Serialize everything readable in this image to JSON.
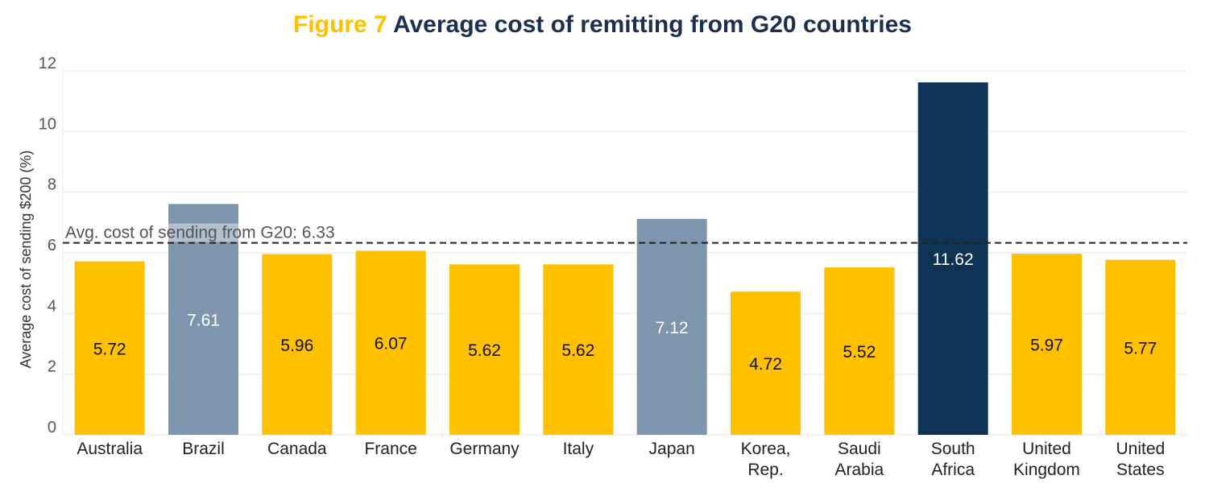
{
  "title": {
    "figure_label": "Figure 7",
    "text": "Average cost of remitting from G20 countries"
  },
  "chart_data": {
    "type": "bar",
    "title": "Figure 7 Average cost of remitting from G20 countries",
    "xlabel": "",
    "ylabel": "Average cost of sending $200 (%)",
    "ylim": [
      0,
      12
    ],
    "yticks": [
      0,
      2,
      4,
      6,
      8,
      10,
      12
    ],
    "grid": true,
    "categories": [
      [
        "Australia"
      ],
      [
        "Brazil"
      ],
      [
        "Canada"
      ],
      [
        "France"
      ],
      [
        "Germany"
      ],
      [
        "Italy"
      ],
      [
        "Japan"
      ],
      [
        "Korea,",
        "Rep."
      ],
      [
        "Saudi",
        "Arabia"
      ],
      [
        "South",
        "Africa"
      ],
      [
        "United",
        "Kingdom"
      ],
      [
        "United",
        "States"
      ]
    ],
    "values": [
      5.72,
      7.61,
      5.96,
      6.07,
      5.62,
      5.62,
      7.12,
      4.72,
      5.52,
      11.62,
      5.97,
      5.77
    ],
    "data_labels": [
      "5.72",
      "7.61",
      "5.96",
      "6.07",
      "5.62",
      "5.62",
      "7.12",
      "4.72",
      "5.52",
      "11.62",
      "5.97",
      "5.77"
    ],
    "bar_colors": [
      "#ffc000",
      "#7d95ad",
      "#ffc000",
      "#ffc000",
      "#ffc000",
      "#ffc000",
      "#7d95ad",
      "#ffc000",
      "#ffc000",
      "#0e3354",
      "#ffc000",
      "#ffc000"
    ],
    "label_colors": [
      "#111111",
      "#ffffff",
      "#111111",
      "#111111",
      "#111111",
      "#111111",
      "#ffffff",
      "#111111",
      "#111111",
      "#ffffff",
      "#111111",
      "#111111"
    ],
    "reference_line": {
      "value": 6.33,
      "label": "Avg. cost of sending from G20: 6.33",
      "style": "dashed"
    }
  }
}
